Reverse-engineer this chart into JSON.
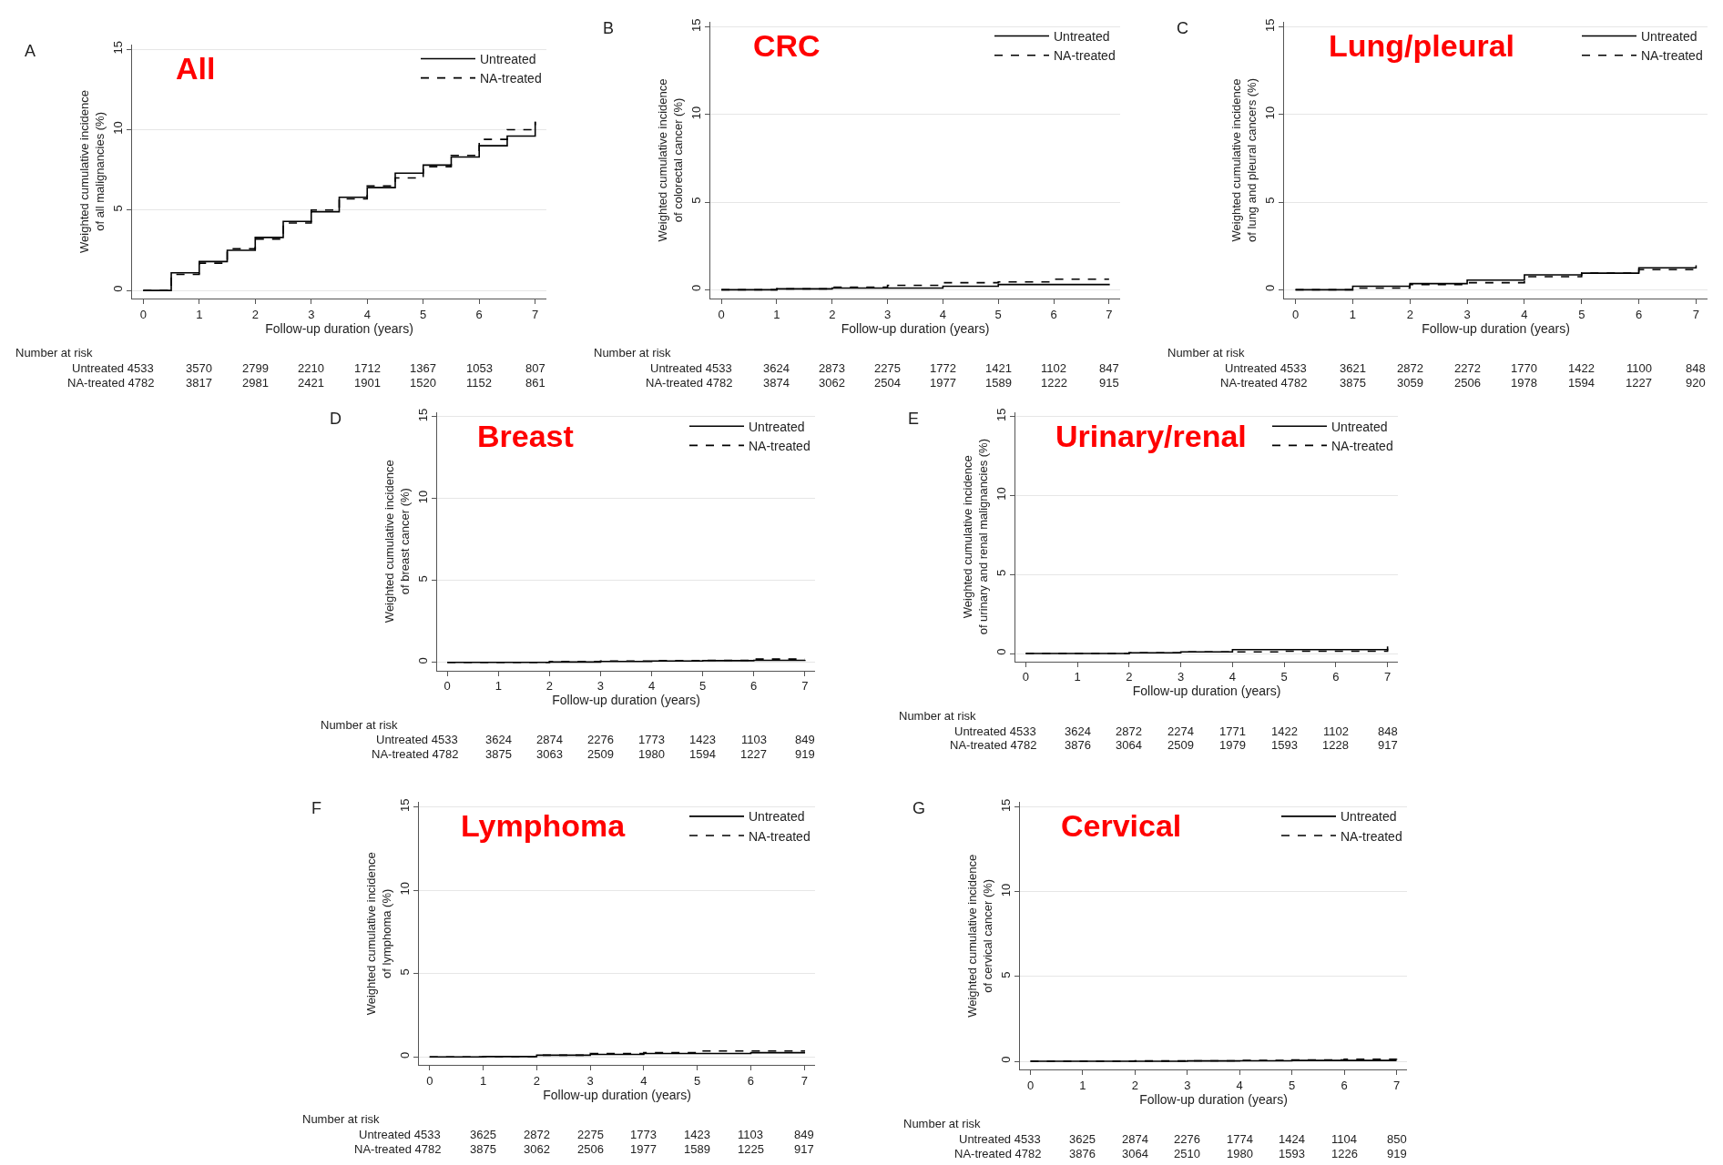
{
  "chart_data": [
    {
      "type": "step",
      "title": "All",
      "xlabel": "Follow-up duration (years)",
      "ylabel": "Weighted cumulative incidence\nof all malignancies (%)",
      "xlim": [
        -0.2,
        7.2
      ],
      "ylim": [
        -0.5,
        15.3
      ],
      "xticks": [
        0,
        1,
        2,
        3,
        4,
        5,
        6,
        7
      ],
      "yticks": [
        0,
        5,
        10,
        15
      ],
      "grid": "y",
      "legend": "top right",
      "series": [
        {
          "name": "Untreated",
          "color": "#000000",
          "line_style": "solid",
          "x": [
            0,
            0.5,
            1,
            1.5,
            2,
            2.5,
            3,
            3.5,
            4,
            4.5,
            5,
            5.5,
            6,
            6.5,
            7
          ],
          "values": [
            0,
            1.1,
            1.8,
            2.5,
            3.3,
            4.3,
            4.9,
            5.8,
            6.4,
            7.3,
            7.8,
            8.3,
            9.0,
            9.6,
            10.5
          ]
        },
        {
          "name": "NA-treated",
          "color": "#000000",
          "line_style": "dashed",
          "x": [
            0,
            0.5,
            1,
            1.5,
            2,
            2.5,
            3,
            3.5,
            4,
            4.5,
            5,
            5.5,
            6,
            6.5,
            7
          ],
          "values": [
            0,
            1.0,
            1.7,
            2.6,
            3.2,
            4.2,
            5.0,
            5.7,
            6.5,
            7.0,
            7.7,
            8.4,
            9.4,
            10.0,
            10.5
          ]
        }
      ],
      "annotations": [
        "A",
        "Number at risk",
        "Untreated 4533 3570 2799 2210 1712 1367 1053 807",
        "NA-treated 4782 3817 2981 2421 1901 1520 1152 861"
      ]
    },
    {
      "type": "step",
      "title": "CRC",
      "xlabel": "Follow-up duration (years)",
      "ylabel": "Weighted cumulative incidence\nof colorectal cancer (%)",
      "xlim": [
        -0.2,
        7.2
      ],
      "ylim": [
        -0.5,
        15.3
      ],
      "xticks": [
        0,
        1,
        2,
        3,
        4,
        5,
        6,
        7
      ],
      "yticks": [
        0,
        5,
        10,
        15
      ],
      "grid": "y",
      "legend": "top right",
      "series": [
        {
          "name": "Untreated",
          "color": "#000000",
          "line_style": "solid",
          "x": [
            0,
            1,
            2,
            3,
            4,
            5,
            6,
            7
          ],
          "values": [
            0,
            0.05,
            0.1,
            0.1,
            0.2,
            0.3,
            0.3,
            0.35
          ]
        },
        {
          "name": "NA-treated",
          "color": "#000000",
          "line_style": "dashed",
          "x": [
            0,
            1,
            2,
            3,
            4,
            5,
            6,
            7
          ],
          "values": [
            0,
            0.05,
            0.15,
            0.25,
            0.4,
            0.45,
            0.6,
            0.6
          ]
        }
      ],
      "annotations": [
        "B",
        "Number at risk",
        "Untreated 4533 3624 2873 2275 1772 1421 1102 847",
        "NA-treated 4782 3874 3062 2504 1977 1589 1222 915"
      ]
    },
    {
      "type": "step",
      "title": "Lung/pleural",
      "xlabel": "Follow-up duration (years)",
      "ylabel": "Weighted cumulative incidence\nof lung and pleural cancers (%)",
      "xlim": [
        -0.2,
        7.2
      ],
      "ylim": [
        -0.5,
        15.3
      ],
      "xticks": [
        0,
        1,
        2,
        3,
        4,
        5,
        6,
        7
      ],
      "yticks": [
        0,
        5,
        10,
        15
      ],
      "grid": "y",
      "legend": "top right",
      "series": [
        {
          "name": "Untreated",
          "color": "#000000",
          "line_style": "solid",
          "x": [
            0,
            1,
            2,
            3,
            4,
            5,
            6,
            7
          ],
          "values": [
            0,
            0.2,
            0.35,
            0.55,
            0.85,
            0.95,
            1.25,
            1.4
          ]
        },
        {
          "name": "NA-treated",
          "color": "#000000",
          "line_style": "dashed",
          "x": [
            0,
            1,
            2,
            3,
            4,
            5,
            6,
            7
          ],
          "values": [
            0,
            0.1,
            0.3,
            0.4,
            0.75,
            0.95,
            1.15,
            1.2
          ]
        }
      ],
      "annotations": [
        "C",
        "Number at risk",
        "Untreated 4533 3621 2872 2272 1770 1422 1100 848",
        "NA-treated 4782 3875 3059 2506 1978 1594 1227 920"
      ]
    },
    {
      "type": "step",
      "title": "Breast",
      "xlabel": "Follow-up duration (years)",
      "ylabel": "Weighted cumulative incidence\nof breast cancer (%)",
      "xlim": [
        -0.2,
        7.2
      ],
      "ylim": [
        -0.5,
        15.3
      ],
      "xticks": [
        0,
        1,
        2,
        3,
        4,
        5,
        6,
        7
      ],
      "yticks": [
        0,
        5,
        10,
        15
      ],
      "grid": "y",
      "legend": "top right",
      "series": [
        {
          "name": "Untreated",
          "color": "#000000",
          "line_style": "solid",
          "x": [
            0,
            1,
            2,
            3,
            4,
            5,
            6,
            7
          ],
          "values": [
            0,
            0,
            0.02,
            0.05,
            0.08,
            0.1,
            0.12,
            0.15
          ]
        },
        {
          "name": "NA-treated",
          "color": "#000000",
          "line_style": "dashed",
          "x": [
            0,
            1,
            2,
            3,
            4,
            5,
            6,
            7
          ],
          "values": [
            0,
            0,
            0.05,
            0.08,
            0.1,
            0.12,
            0.2,
            0.2
          ]
        }
      ],
      "annotations": [
        "D",
        "Number at risk",
        "Untreated 4533 3624 2874 2276 1773 1423 1103 849",
        "NA-treated 4782 3875 3063 2509 1980 1594 1227 919"
      ]
    },
    {
      "type": "step",
      "title": "Urinary/renal",
      "xlabel": "Follow-up duration (years)",
      "ylabel": "Weighted cumulative incidence\nof urinary and renal malignancies (%)",
      "xlim": [
        -0.2,
        7.2
      ],
      "ylim": [
        -0.5,
        15.3
      ],
      "xticks": [
        0,
        1,
        2,
        3,
        4,
        5,
        6,
        7
      ],
      "yticks": [
        0,
        5,
        10,
        15
      ],
      "grid": "y",
      "legend": "top right",
      "series": [
        {
          "name": "Untreated",
          "color": "#000000",
          "line_style": "solid",
          "x": [
            0,
            1,
            2,
            3,
            4,
            5,
            6,
            7
          ],
          "values": [
            0,
            0,
            0.05,
            0.1,
            0.25,
            0.25,
            0.25,
            0.3
          ]
        },
        {
          "name": "NA-treated",
          "color": "#000000",
          "line_style": "dashed",
          "x": [
            0,
            1,
            2,
            3,
            4,
            5,
            6,
            7
          ],
          "values": [
            0,
            0,
            0.05,
            0.1,
            0.1,
            0.15,
            0.15,
            0.45
          ]
        }
      ],
      "annotations": [
        "E",
        "Number at risk",
        "Untreated 4533 3624 2872 2274 1771 1422 1102 848",
        "NA-treated 4782 3876 3064 2509 1979 1593 1228 917"
      ]
    },
    {
      "type": "step",
      "title": "Lymphoma",
      "xlabel": "Follow-up duration (years)",
      "ylabel": "Weighted cumulative incidence\nof lymphoma (%)",
      "xlim": [
        -0.2,
        7.2
      ],
      "ylim": [
        -0.5,
        15.3
      ],
      "xticks": [
        0,
        1,
        2,
        3,
        4,
        5,
        6,
        7
      ],
      "yticks": [
        0,
        5,
        10,
        15
      ],
      "grid": "y",
      "legend": "top right",
      "series": [
        {
          "name": "Untreated",
          "color": "#000000",
          "line_style": "solid",
          "x": [
            0,
            1,
            2,
            3,
            4,
            5,
            6,
            7
          ],
          "values": [
            0,
            0.02,
            0.1,
            0.15,
            0.2,
            0.2,
            0.25,
            0.3
          ]
        },
        {
          "name": "NA-treated",
          "color": "#000000",
          "line_style": "dashed",
          "x": [
            0,
            1,
            2,
            3,
            4,
            5,
            6,
            7
          ],
          "values": [
            0,
            0.02,
            0.1,
            0.2,
            0.25,
            0.35,
            0.35,
            0.4
          ]
        }
      ],
      "annotations": [
        "F",
        "Number at risk",
        "Untreated 4533 3625 2872 2275 1773 1423 1103 849",
        "NA-treated 4782 3875 3062 2506 1977 1589 1225 917"
      ]
    },
    {
      "type": "step",
      "title": "Cervical",
      "xlabel": "Follow-up duration (years)",
      "ylabel": "Weighted cumulative incidence\nof cervical cancer (%)",
      "xlim": [
        -0.2,
        7.2
      ],
      "ylim": [
        -0.5,
        15.3
      ],
      "xticks": [
        0,
        1,
        2,
        3,
        4,
        5,
        6,
        7
      ],
      "yticks": [
        0,
        5,
        10,
        15
      ],
      "grid": "y",
      "legend": "top right",
      "series": [
        {
          "name": "Untreated",
          "color": "#000000",
          "line_style": "solid",
          "x": [
            0,
            1,
            2,
            3,
            4,
            5,
            6,
            7
          ],
          "values": [
            0,
            0,
            0,
            0.02,
            0.03,
            0.05,
            0.05,
            0.05
          ]
        },
        {
          "name": "NA-treated",
          "color": "#000000",
          "line_style": "dashed",
          "x": [
            0,
            1,
            2,
            3,
            4,
            5,
            6,
            7
          ],
          "values": [
            0,
            0,
            0.02,
            0.03,
            0.05,
            0.08,
            0.12,
            0.15
          ]
        }
      ],
      "annotations": [
        "G",
        "Number at risk",
        "Untreated 4533 3625 2874 2276 1774 1424 1104 850",
        "NA-treated 4782 3876 3064 2510 1980 1593 1226 919"
      ]
    }
  ]
}
